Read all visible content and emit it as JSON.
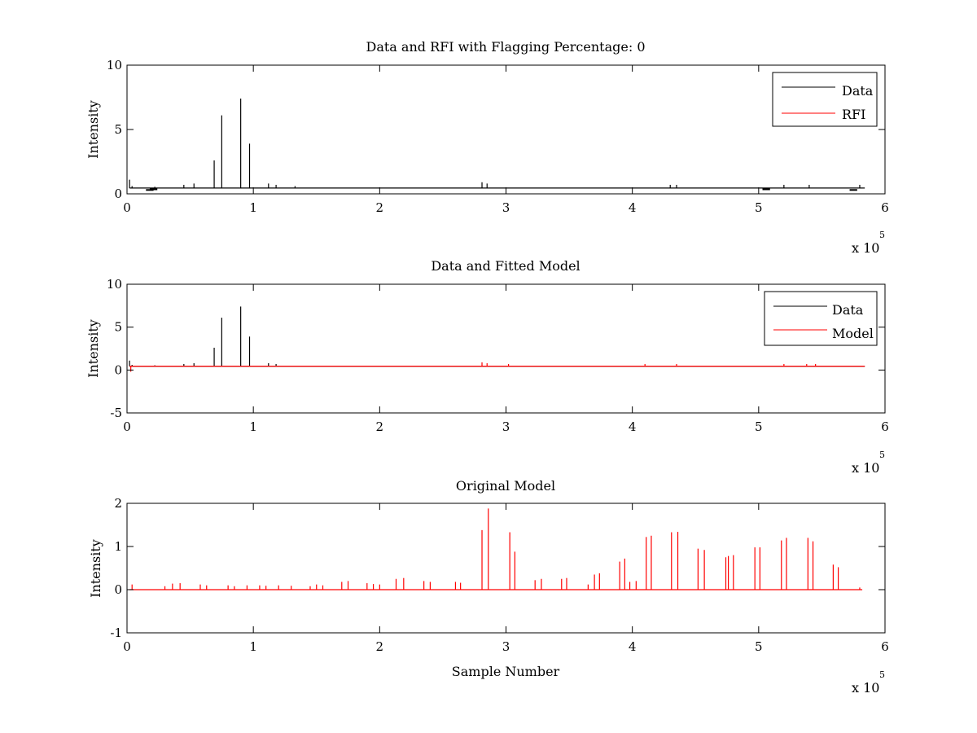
{
  "figure": {
    "background": "#ffffff"
  },
  "colors": {
    "data": "#000000",
    "rfi": "#ff0000",
    "model": "#ff0000",
    "axes": "#000000"
  },
  "chart_data": [
    {
      "type": "line",
      "title": "Data and RFI with Flagging Percentage: 0",
      "xlabel": "",
      "ylabel": "Intensity",
      "xlim": [
        0,
        6
      ],
      "ylim": [
        0,
        10
      ],
      "xticks": [
        0,
        1,
        2,
        3,
        4,
        5,
        6
      ],
      "yticks": [
        0,
        5,
        10
      ],
      "x_multiplier": "x 10",
      "x_multiplier_exponent": "5",
      "legend": {
        "position": "top-right",
        "entries": [
          "Data",
          "RFI"
        ]
      },
      "series": [
        {
          "name": "Data",
          "color": "#000000",
          "baseline": 0.45,
          "spikes": [
            {
              "x": 0.02,
              "y": 1.1
            },
            {
              "x": 0.04,
              "y": 0.6
            },
            {
              "x": 0.22,
              "y": 0.55
            },
            {
              "x": 0.45,
              "y": 0.7
            },
            {
              "x": 0.53,
              "y": 0.8
            },
            {
              "x": 0.69,
              "y": 2.6
            },
            {
              "x": 0.75,
              "y": 6.1
            },
            {
              "x": 0.9,
              "y": 7.4
            },
            {
              "x": 0.97,
              "y": 3.9
            },
            {
              "x": 1.12,
              "y": 0.8
            },
            {
              "x": 1.18,
              "y": 0.7
            },
            {
              "x": 1.33,
              "y": 0.6
            },
            {
              "x": 2.81,
              "y": 0.9
            },
            {
              "x": 2.85,
              "y": 0.8
            },
            {
              "x": 4.3,
              "y": 0.7
            },
            {
              "x": 4.35,
              "y": 0.7
            },
            {
              "x": 5.2,
              "y": 0.7
            },
            {
              "x": 5.4,
              "y": 0.7
            },
            {
              "x": 5.8,
              "y": 0.7
            }
          ],
          "dips": [
            {
              "x": 0.18,
              "y": 0.3
            },
            {
              "x": 0.21,
              "y": 0.35
            },
            {
              "x": 5.06,
              "y": 0.35
            },
            {
              "x": 5.75,
              "y": 0.3
            }
          ]
        },
        {
          "name": "RFI",
          "color": "#ff0000",
          "values": []
        }
      ]
    },
    {
      "type": "line",
      "title": "Data and Fitted Model",
      "xlabel": "",
      "ylabel": "Intensity",
      "xlim": [
        0,
        6
      ],
      "ylim": [
        -5,
        10
      ],
      "xticks": [
        0,
        1,
        2,
        3,
        4,
        5,
        6
      ],
      "yticks": [
        -5,
        0,
        5,
        10
      ],
      "x_multiplier": "x 10",
      "x_multiplier_exponent": "5",
      "legend": {
        "position": "top-right",
        "entries": [
          "Data",
          "Model"
        ]
      },
      "series": [
        {
          "name": "Data",
          "color": "#000000",
          "baseline": 0.45,
          "spikes": [
            {
              "x": 0.02,
              "y": 1.1
            },
            {
              "x": 0.04,
              "y": 0.6
            },
            {
              "x": 0.22,
              "y": 0.55
            },
            {
              "x": 0.45,
              "y": 0.7
            },
            {
              "x": 0.53,
              "y": 0.8
            },
            {
              "x": 0.69,
              "y": 2.6
            },
            {
              "x": 0.75,
              "y": 6.1
            },
            {
              "x": 0.9,
              "y": 7.4
            },
            {
              "x": 0.97,
              "y": 3.9
            },
            {
              "x": 1.12,
              "y": 0.8
            },
            {
              "x": 1.18,
              "y": 0.7
            }
          ]
        },
        {
          "name": "Model",
          "color": "#ff0000",
          "baseline": 0.45,
          "spikes": [
            {
              "x": 0.03,
              "y": -0.2
            },
            {
              "x": 2.81,
              "y": 0.9
            },
            {
              "x": 2.85,
              "y": 0.8
            },
            {
              "x": 3.02,
              "y": 0.7
            },
            {
              "x": 4.1,
              "y": 0.7
            },
            {
              "x": 4.35,
              "y": 0.7
            },
            {
              "x": 5.2,
              "y": 0.7
            },
            {
              "x": 5.38,
              "y": 0.7
            },
            {
              "x": 5.45,
              "y": 0.7
            }
          ]
        }
      ]
    },
    {
      "type": "line",
      "title": "Original Model",
      "xlabel": "Sample Number",
      "ylabel": "Intensity",
      "xlim": [
        0,
        6
      ],
      "ylim": [
        -1,
        2
      ],
      "xticks": [
        0,
        1,
        2,
        3,
        4,
        5,
        6
      ],
      "yticks": [
        -1,
        0,
        1,
        2
      ],
      "x_multiplier": "x 10",
      "x_multiplier_exponent": "5",
      "series": [
        {
          "name": "",
          "color": "#ff0000",
          "baseline": 0.0,
          "x_end": 5.82,
          "spikes": [
            {
              "x": 0.04,
              "y": 0.12
            },
            {
              "x": 0.3,
              "y": 0.08
            },
            {
              "x": 0.36,
              "y": 0.14
            },
            {
              "x": 0.42,
              "y": 0.15
            },
            {
              "x": 0.58,
              "y": 0.12
            },
            {
              "x": 0.63,
              "y": 0.1
            },
            {
              "x": 0.8,
              "y": 0.1
            },
            {
              "x": 0.85,
              "y": 0.08
            },
            {
              "x": 0.95,
              "y": 0.1
            },
            {
              "x": 1.05,
              "y": 0.1
            },
            {
              "x": 1.1,
              "y": 0.09
            },
            {
              "x": 1.2,
              "y": 0.1
            },
            {
              "x": 1.3,
              "y": 0.09
            },
            {
              "x": 1.45,
              "y": 0.08
            },
            {
              "x": 1.5,
              "y": 0.12
            },
            {
              "x": 1.55,
              "y": 0.1
            },
            {
              "x": 1.7,
              "y": 0.18
            },
            {
              "x": 1.75,
              "y": 0.2
            },
            {
              "x": 1.9,
              "y": 0.15
            },
            {
              "x": 1.95,
              "y": 0.13
            },
            {
              "x": 2.0,
              "y": 0.12
            },
            {
              "x": 2.13,
              "y": 0.25
            },
            {
              "x": 2.19,
              "y": 0.27
            },
            {
              "x": 2.35,
              "y": 0.2
            },
            {
              "x": 2.4,
              "y": 0.18
            },
            {
              "x": 2.6,
              "y": 0.18
            },
            {
              "x": 2.64,
              "y": 0.16
            },
            {
              "x": 2.81,
              "y": 1.38
            },
            {
              "x": 2.86,
              "y": 1.88
            },
            {
              "x": 3.03,
              "y": 1.33
            },
            {
              "x": 3.07,
              "y": 0.88
            },
            {
              "x": 3.23,
              "y": 0.22
            },
            {
              "x": 3.28,
              "y": 0.25
            },
            {
              "x": 3.44,
              "y": 0.25
            },
            {
              "x": 3.48,
              "y": 0.27
            },
            {
              "x": 3.65,
              "y": 0.12
            },
            {
              "x": 3.7,
              "y": 0.35
            },
            {
              "x": 3.74,
              "y": 0.38
            },
            {
              "x": 3.9,
              "y": 0.65
            },
            {
              "x": 3.94,
              "y": 0.72
            },
            {
              "x": 3.98,
              "y": 0.18
            },
            {
              "x": 4.03,
              "y": 0.2
            },
            {
              "x": 4.11,
              "y": 1.22
            },
            {
              "x": 4.15,
              "y": 1.25
            },
            {
              "x": 4.31,
              "y": 1.33
            },
            {
              "x": 4.36,
              "y": 1.34
            },
            {
              "x": 4.52,
              "y": 0.95
            },
            {
              "x": 4.57,
              "y": 0.92
            },
            {
              "x": 4.74,
              "y": 0.75
            },
            {
              "x": 4.76,
              "y": 0.78
            },
            {
              "x": 4.8,
              "y": 0.8
            },
            {
              "x": 4.97,
              "y": 0.98
            },
            {
              "x": 5.01,
              "y": 0.98
            },
            {
              "x": 5.18,
              "y": 1.14
            },
            {
              "x": 5.22,
              "y": 1.2
            },
            {
              "x": 5.39,
              "y": 1.2
            },
            {
              "x": 5.43,
              "y": 1.12
            },
            {
              "x": 5.59,
              "y": 0.58
            },
            {
              "x": 5.63,
              "y": 0.52
            },
            {
              "x": 5.8,
              "y": 0.05
            }
          ]
        }
      ]
    }
  ]
}
